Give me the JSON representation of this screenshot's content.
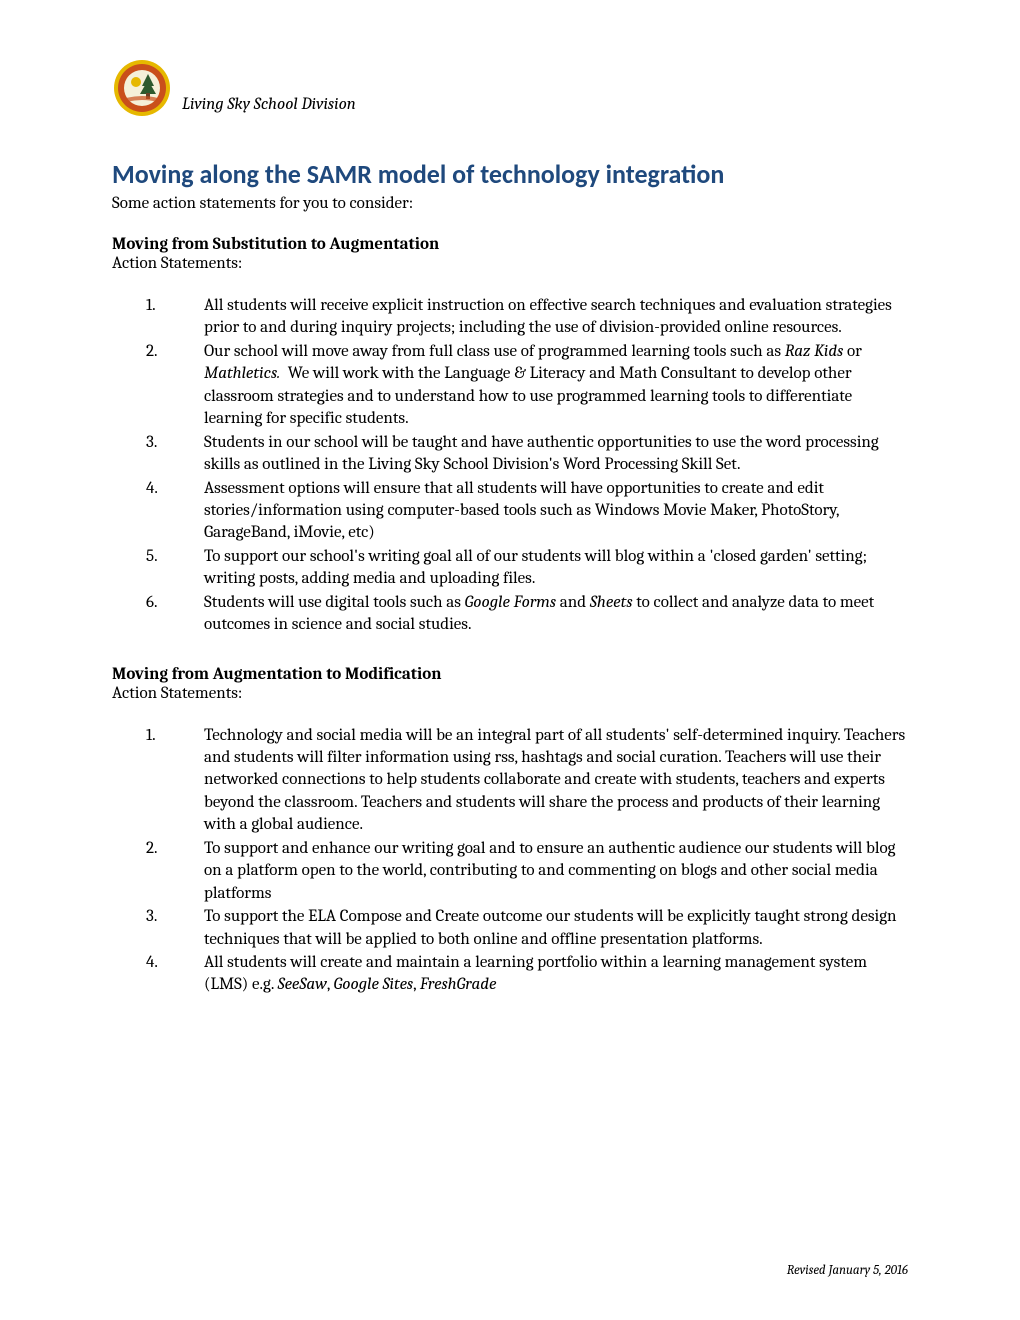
{
  "header": {
    "org_name": "Living Sky School Division"
  },
  "title": "Moving along the SAMR model of technology integration",
  "subtitle": "Some action statements for you to consider:",
  "colors": {
    "title_color": "#1f497d",
    "body_color": "#000000",
    "background": "#ffffff"
  },
  "typography": {
    "title_font": "Calibri",
    "title_size_pt": 18,
    "body_font": "Cambria",
    "body_size_pt": 12,
    "footer_size_pt": 9
  },
  "sections": [
    {
      "heading": "Moving from Substitution to Augmentation",
      "label": "Action Statements:",
      "items": [
        {
          "html": "All students will receive explicit instruction on effective search techniques and evaluation strategies prior to and during inquiry projects; including the use of division-provided online resources."
        },
        {
          "html": "Our school will move away from full class use of programmed learning tools such as <span class=\"italic\">Raz Kids</span> or <span class=\"italic\">Mathletics.</span>&nbsp;&nbsp;We will work with the Language &amp; Literacy and Math Consultant to develop other classroom strategies and to understand how to use programmed learning tools to differentiate learning for specific students."
        },
        {
          "html": "Students in our school will be taught and have authentic opportunities to use the word processing skills as outlined in the Living Sky School Division's Word Processing Skill Set."
        },
        {
          "html": "Assessment options will ensure that all students will have opportunities to create and edit stories/information using computer-based tools such as Windows Movie Maker, PhotoStory, GarageBand, iMovie, etc)"
        },
        {
          "html": "To support our school's writing goal all of our students will blog within a 'closed garden' setting; writing posts, adding media and uploading files."
        },
        {
          "html": "Students will use digital tools such as <span class=\"italic\">Google Forms</span> and <span class=\"italic\">Sheets</span> to collect and analyze data to meet outcomes in science and social studies."
        }
      ]
    },
    {
      "heading": "Moving from Augmentation to Modification",
      "label": "Action Statements:",
      "items": [
        {
          "html": "Technology and social media will be an integral part of all students' self-determined inquiry. Teachers and students will filter information using rss, hashtags and social curation. Teachers will use their networked connections to help students collaborate and create with students, teachers and experts beyond the classroom. Teachers and students will share the process and products of their learning with a global audience."
        },
        {
          "html": "To support and enhance our writing goal and to ensure an authentic audience our students will blog on a platform open to the world, contributing to and commenting on blogs and other social media platforms"
        },
        {
          "html": "To support the ELA Compose and Create outcome our students will be explicitly taught strong design techniques that will be applied to both online and offline presentation platforms."
        },
        {
          "html": "All students will create and maintain a learning portfolio within a learning management system (LMS) e.g. <span class=\"italic\">SeeSaw</span>, <span class=\"italic\">Google Sites</span>, <span class=\"italic\">FreshGrade</span>"
        }
      ]
    }
  ],
  "footer": "Revised January 5, 2016",
  "logo": {
    "outer_ring": "#e6b800",
    "inner_ring": "#c94f1b",
    "center_bg": "#f5f0d8",
    "tree": "#2d5a2d",
    "sun": "#e6b800"
  }
}
